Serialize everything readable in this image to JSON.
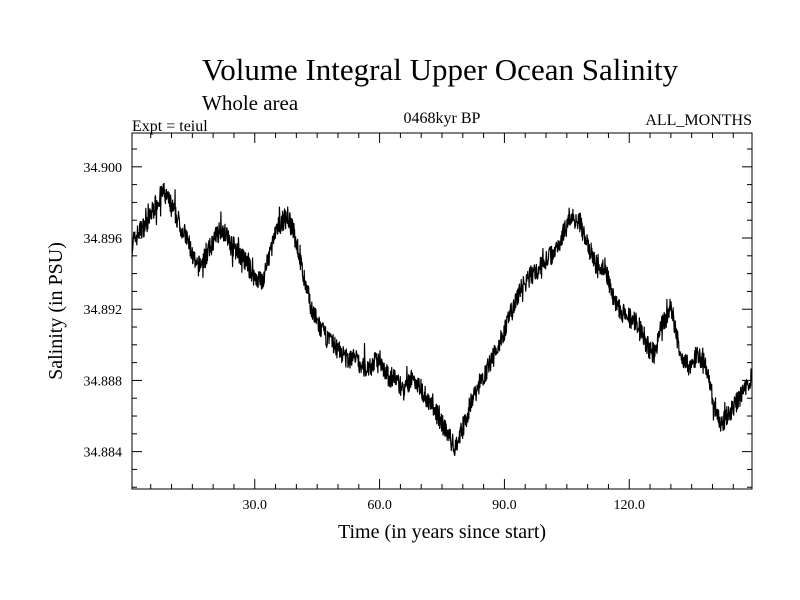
{
  "chart_data": {
    "type": "line",
    "title": "Volume Integral Upper Ocean Salinity",
    "subtitle": "Whole area",
    "expt_label": "Expt = teiul",
    "period_label": "0468kyr BP",
    "months_label": "ALL_MONTHS",
    "xlabel": "Time (in years since start)",
    "ylabel": "Salinity (in PSU)",
    "xlim": [
      0.5,
      149.5
    ],
    "ylim": [
      34.8819,
      34.9019
    ],
    "x_ticks": [
      30.0,
      60.0,
      90.0,
      120.0
    ],
    "x_tick_labels": [
      "30.0",
      "60.0",
      "90.0",
      "120.0"
    ],
    "y_ticks": [
      34.884,
      34.888,
      34.892,
      34.896,
      34.9
    ],
    "y_tick_labels": [
      "34.884",
      "34.888",
      "34.892",
      "34.896",
      "34.900"
    ],
    "series": [
      {
        "name": "Salinity",
        "color": "#000000",
        "x": [
          0.5,
          2,
          4,
          6,
          8,
          10,
          12,
          14,
          16,
          18,
          20,
          22,
          24,
          26,
          28,
          30,
          32,
          34,
          36,
          38,
          40,
          42,
          44,
          46,
          48,
          50,
          52,
          54,
          56,
          58,
          60,
          62,
          64,
          66,
          68,
          70,
          72,
          74,
          76,
          78,
          80,
          82,
          84,
          86,
          88,
          90,
          92,
          94,
          96,
          98,
          100,
          102,
          104,
          106,
          108,
          110,
          112,
          114,
          116,
          118,
          120,
          122,
          124,
          126,
          128,
          130,
          132,
          134,
          136,
          138,
          140,
          142,
          144,
          146,
          148,
          149.5
        ],
        "values": [
          34.8955,
          34.8963,
          34.8968,
          34.8978,
          34.8986,
          34.8978,
          34.8968,
          34.8958,
          34.8943,
          34.8948,
          34.8958,
          34.8966,
          34.8958,
          34.8952,
          34.8946,
          34.8938,
          34.8936,
          34.8955,
          34.8968,
          34.8972,
          34.8958,
          34.8935,
          34.8918,
          34.8908,
          34.8902,
          34.8898,
          34.8892,
          34.8893,
          34.8887,
          34.8888,
          34.8893,
          34.8882,
          34.8881,
          34.8873,
          34.8883,
          34.8875,
          34.8868,
          34.886,
          34.8852,
          34.8842,
          34.8853,
          34.8868,
          34.8878,
          34.8887,
          34.8896,
          34.8908,
          34.892,
          34.8932,
          34.8938,
          34.8942,
          34.8948,
          34.8952,
          34.8962,
          34.8972,
          34.897,
          34.8955,
          34.8945,
          34.8945,
          34.8928,
          34.8918,
          34.8915,
          34.8912,
          34.89,
          34.8895,
          34.8912,
          34.8922,
          34.8898,
          34.8888,
          34.8893,
          34.8893,
          34.887,
          34.8855,
          34.8862,
          34.8868,
          34.8876,
          34.8882
        ]
      }
    ]
  }
}
